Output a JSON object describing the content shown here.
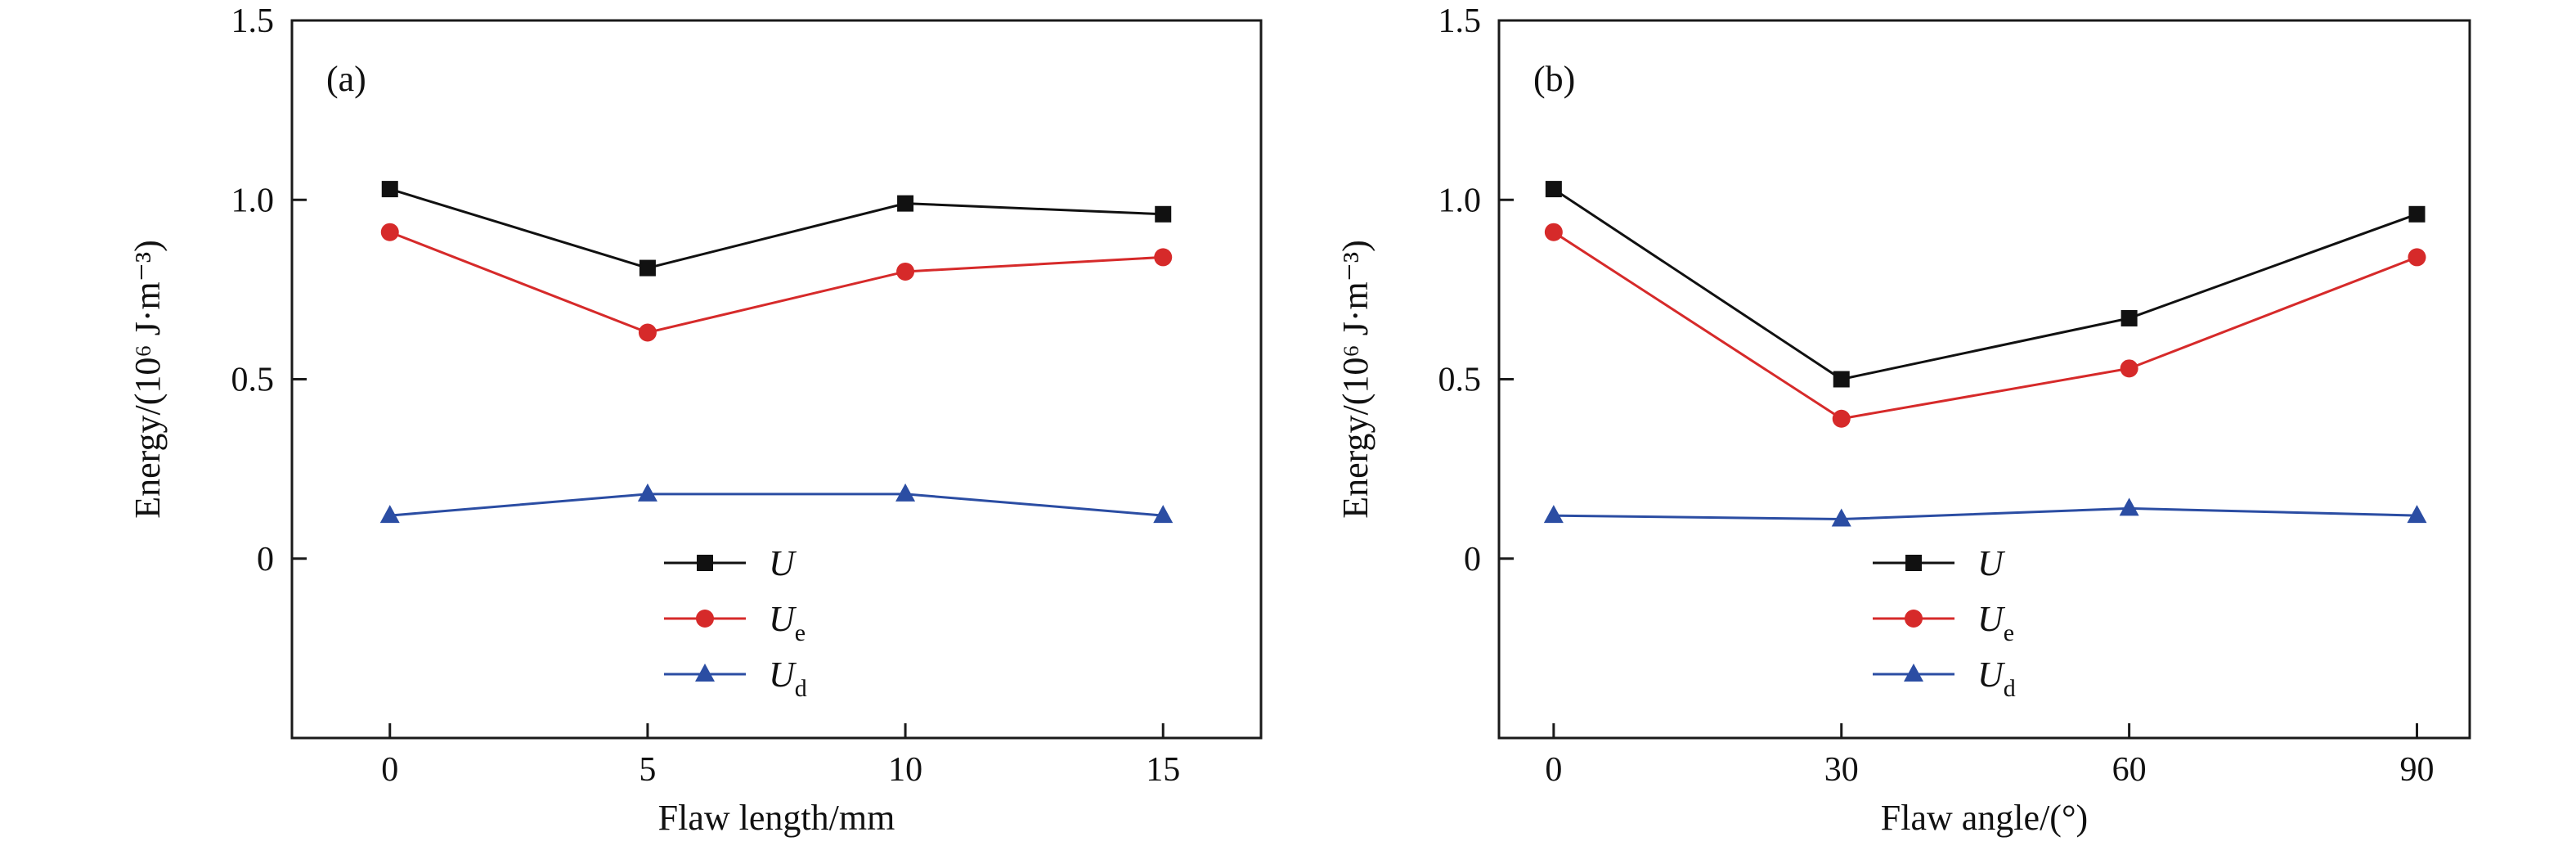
{
  "colors": {
    "U": "#111111",
    "Ue": "#d62a2a",
    "Ud": "#2b4da3"
  },
  "legend": {
    "placement": "lower-center",
    "entries": [
      {
        "key": "U",
        "main": "U",
        "sub": "",
        "marker": "square"
      },
      {
        "key": "Ue",
        "main": "U",
        "sub": "e",
        "marker": "circle"
      },
      {
        "key": "Ud",
        "main": "U",
        "sub": "d",
        "marker": "triangle"
      }
    ]
  },
  "chart_data": [
    {
      "type": "line",
      "panel_label": "(a)",
      "xlabel": "Flaw length/mm",
      "ylabel": "Energy/(10⁶ J·m⁻³)",
      "x": [
        0,
        5,
        10,
        15
      ],
      "x_tick_labels": [
        "0",
        "5",
        "10",
        "15"
      ],
      "xlim": [
        -1.9,
        16.9
      ],
      "ylim": [
        -0.5,
        1.5
      ],
      "y_ticks": [
        0,
        0.5,
        1.0,
        1.5
      ],
      "y_tick_labels": [
        "0",
        "0.5",
        "1.0",
        "1.5"
      ],
      "series": [
        {
          "key": "U",
          "marker": "square",
          "values": [
            1.03,
            0.81,
            0.99,
            0.96
          ]
        },
        {
          "key": "Ue",
          "marker": "circle",
          "values": [
            0.91,
            0.63,
            0.8,
            0.84
          ]
        },
        {
          "key": "Ud",
          "marker": "triangle",
          "values": [
            0.12,
            0.18,
            0.18,
            0.12
          ]
        }
      ]
    },
    {
      "type": "line",
      "panel_label": "(b)",
      "xlabel": "Flaw angle/(°)",
      "ylabel": "Energy/(10⁶ J·m⁻³)",
      "x": [
        0,
        30,
        60,
        90
      ],
      "x_tick_labels": [
        "0",
        "30",
        "60",
        "90"
      ],
      "xlim": [
        -5.7,
        95.5
      ],
      "ylim": [
        -0.5,
        1.5
      ],
      "y_ticks": [
        0,
        0.5,
        1.0,
        1.5
      ],
      "y_tick_labels": [
        "0",
        "0.5",
        "1.0",
        "1.5"
      ],
      "series": [
        {
          "key": "U",
          "marker": "square",
          "values": [
            1.03,
            0.5,
            0.67,
            0.96
          ]
        },
        {
          "key": "Ue",
          "marker": "circle",
          "values": [
            0.91,
            0.39,
            0.53,
            0.84
          ]
        },
        {
          "key": "Ud",
          "marker": "triangle",
          "values": [
            0.12,
            0.11,
            0.14,
            0.12
          ]
        }
      ]
    }
  ]
}
